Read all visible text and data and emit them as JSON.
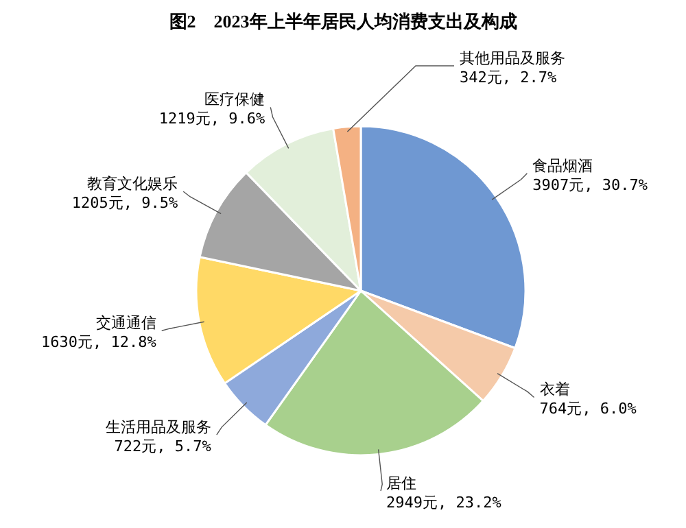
{
  "chart_data": {
    "type": "pie",
    "title": "图2　2023年上半年居民人均消费支出及构成",
    "categories": [
      "食品烟酒",
      "衣着",
      "居住",
      "生活用品及服务",
      "交通通信",
      "教育文化娱乐",
      "医疗保健",
      "其他用品及服务"
    ],
    "values": [
      3907,
      764,
      2949,
      722,
      1630,
      1205,
      1219,
      342
    ],
    "value_labels": [
      "3907元, 30.7%",
      "764元, 6.0%",
      "2949元, 23.2%",
      "722元, 5.7%",
      "1630元, 12.8%",
      "1205元, 9.5%",
      "1219元, 9.6%",
      "342元, 2.7%"
    ],
    "colors": [
      "#6f98d2",
      "#f5caa9",
      "#a8d08d",
      "#8ea9db",
      "#ffd966",
      "#a5a5a5",
      "#e2efda",
      "#f4b183"
    ]
  }
}
